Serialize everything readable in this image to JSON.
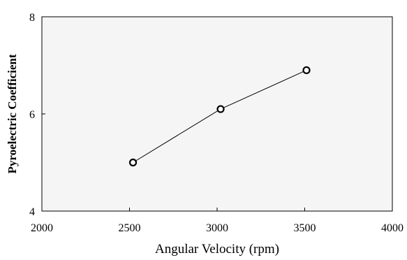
{
  "chart_data": {
    "type": "line",
    "title": "",
    "xlabel": "Angular Velocity (rpm)",
    "ylabel": "Pyroelectric Coefficient",
    "xlim": [
      2000,
      4000
    ],
    "ylim": [
      4,
      8
    ],
    "x_ticks": [
      "2000",
      "2500",
      "3000",
      "3500",
      "4000"
    ],
    "y_ticks": [
      "4",
      "6",
      "8"
    ],
    "grid": false,
    "legend": "none",
    "series": [
      {
        "x": [
          2520,
          3020,
          3510
        ],
        "y": [
          5.0,
          6.1,
          6.9
        ]
      }
    ],
    "colors": {
      "plot_background": "#f5f5f5",
      "line": "#000000",
      "marker_fill": "#ffffff",
      "marker_stroke": "#000000"
    }
  }
}
